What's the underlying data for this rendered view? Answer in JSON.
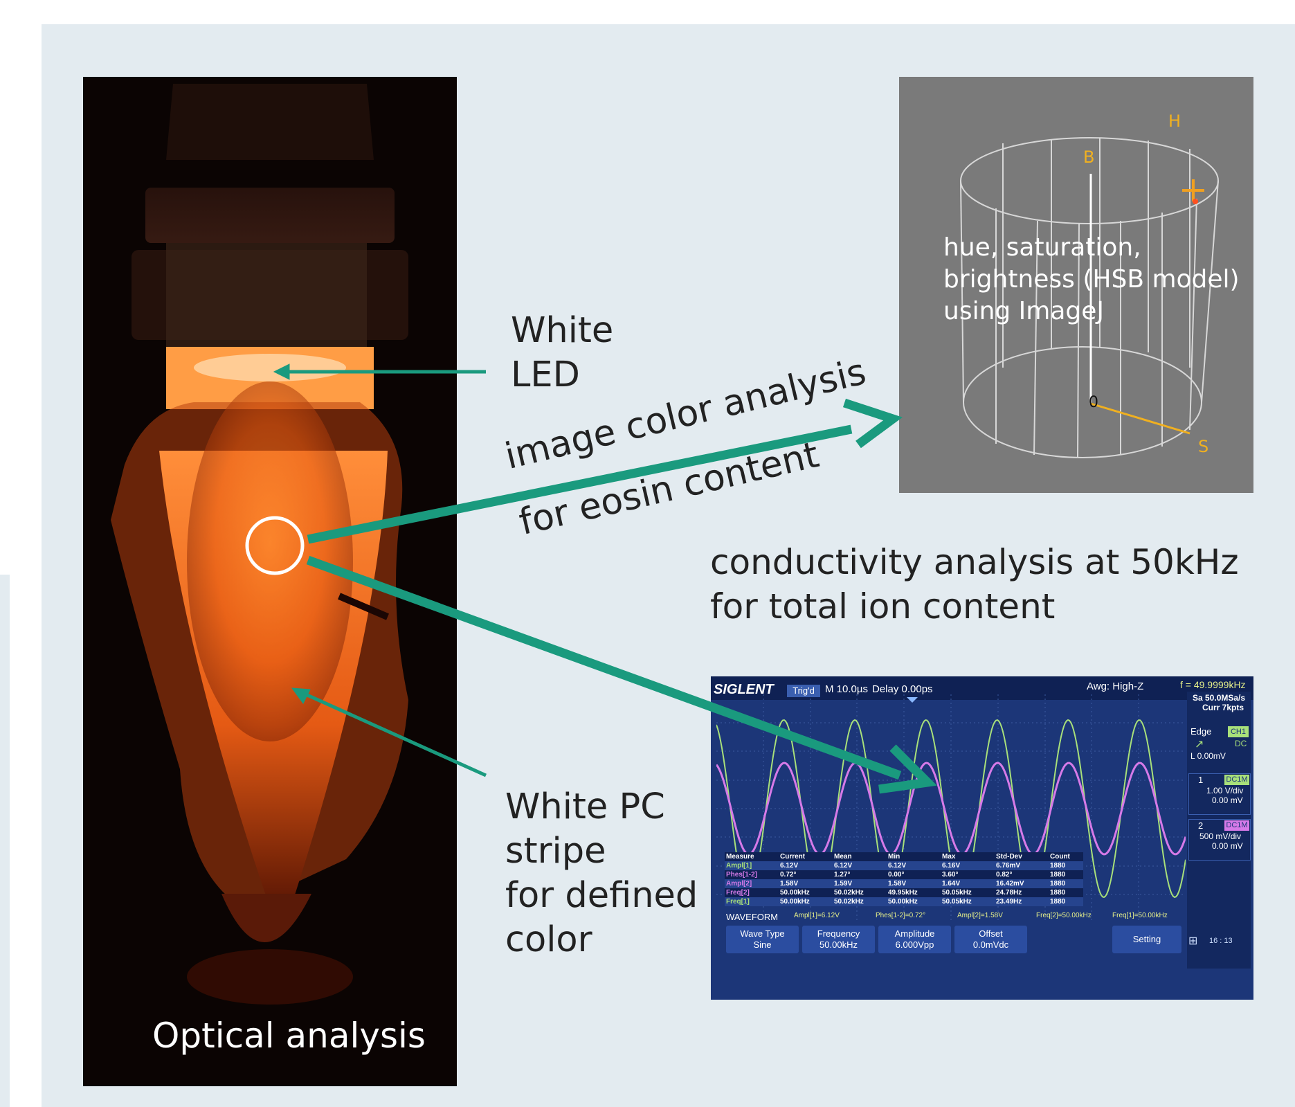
{
  "labels": {
    "white_led": "White\nLED",
    "image_color": "image color analysis",
    "eosin": "for eosin content",
    "conductivity": "conductivity analysis at 50kHz\nfor total ion content",
    "white_pc": "White PC\nstripe\nfor defined\ncolor",
    "optical": "Optical analysis"
  },
  "hsb": {
    "caption": "hue, saturation,\nbrightness (HSB model)\nusing ImageJ",
    "axis_h": "H",
    "axis_b": "B",
    "axis_s": "S",
    "origin": "0"
  },
  "scope": {
    "brand": "SIGLENT",
    "trig": "Trig'd",
    "timebase": "M 10.0µs",
    "delay": "Delay 0.00ps",
    "acq": "Awg: High-Z",
    "freq": "f = 49.9999kHz",
    "sample_rate": "Sa 50.0MSa/s",
    "curr": "Curr 7kpts",
    "edge": "Edge",
    "ch1": "CH1",
    "dc": "DC",
    "level": "L  0.00mV",
    "c1_num": "1",
    "c1_tag": "DC1M",
    "c1_scale": "1.00 V/div",
    "c1_offset": "0.00 mV",
    "c2_num": "2",
    "c2_tag": "DC1M",
    "c2_scale": "500 mV/div",
    "c2_offset": "0.00 mV",
    "table_headers": [
      "Measure",
      "Current",
      "Mean",
      "Min",
      "Max",
      "Std-Dev",
      "Count"
    ],
    "table_rows": [
      [
        "Ampl[1]",
        "6.12V",
        "6.12V",
        "6.12V",
        "6.16V",
        "6.76mV",
        "1880"
      ],
      [
        "Phes[1-2]",
        "0.72°",
        "1.27°",
        "0.00°",
        "3.60°",
        "0.82°",
        "1880"
      ],
      [
        "Ampl[2]",
        "1.58V",
        "1.59V",
        "1.58V",
        "1.64V",
        "16.42mV",
        "1880"
      ],
      [
        "Freq[2]",
        "50.00kHz",
        "50.02kHz",
        "49.95kHz",
        "50.05kHz",
        "24.78Hz",
        "1880"
      ],
      [
        "Freq[1]",
        "50.00kHz",
        "50.02kHz",
        "50.00kHz",
        "50.05kHz",
        "23.49Hz",
        "1880"
      ]
    ],
    "waveform": "WAVEFORM",
    "status_items": [
      "Ampl[1]=6.12V",
      "Phes[1-2]=0.72°",
      "Ampl[2]=1.58V",
      "Freq[2]=50.00kHz",
      "Freq[1]=50.00kHz"
    ],
    "buttons": [
      {
        "label": "Wave Type",
        "value": "Sine"
      },
      {
        "label": "Frequency",
        "value": "50.00kHz"
      },
      {
        "label": "Amplitude",
        "value": "6.000Vpp"
      },
      {
        "label": "Offset",
        "value": "0.0mVdc"
      }
    ],
    "setting": "Setting",
    "page": "16 : 13"
  },
  "colors": {
    "panel": "#e3ebf0",
    "arrow": "#1a9a7e",
    "hsb_bg": "#7a7a7a",
    "scope_bg": "#1c3678",
    "ch1": "#a8e07a",
    "ch2": "#d67ae8"
  }
}
